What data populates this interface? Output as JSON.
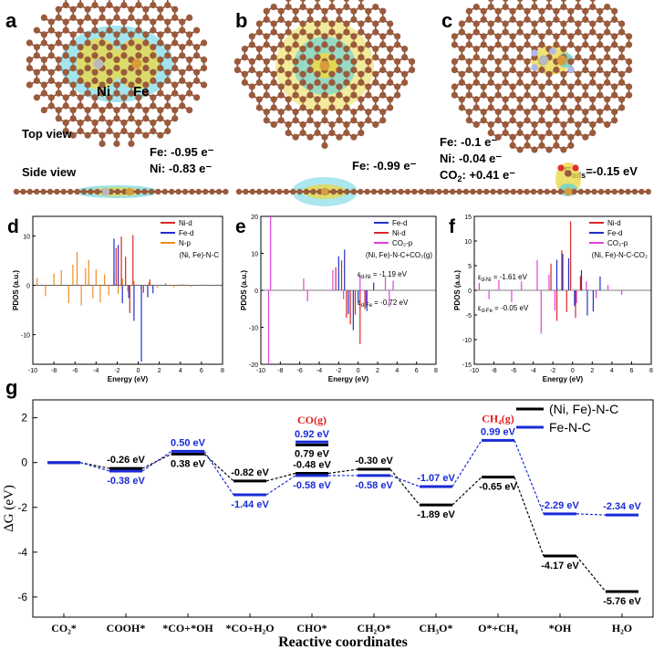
{
  "figure": {
    "panels_top": {
      "a": {
        "label": "a",
        "atom_ni": "Ni",
        "atom_fe": "Fe",
        "top_view": "Top view",
        "side_view": "Side view",
        "charge_fe": "Fe: -0.95 e⁻",
        "charge_ni": "Ni: -0.83 e⁻"
      },
      "b": {
        "label": "b",
        "charge_fe": "Fe: -0.99 e⁻"
      },
      "c": {
        "label": "c",
        "charge_fe": "Fe: -0.1 e⁻",
        "charge_ni": "Ni: -0.04 e⁻",
        "charge_co2_prefix": "CO",
        "charge_co2_sub": "2",
        "charge_co2_value": ": +0.41 e⁻",
        "eads_prefix": "E",
        "eads_sub": "ads",
        "eads_value": "=-0.15 eV"
      }
    },
    "colors": {
      "carbon": "#9a5a3c",
      "bond": "#8a4c30",
      "nitrogen": "#b0b8e8",
      "fe_atom": "#d79c3b",
      "ni_atom": "#b9b9b9",
      "iso_yellow": "#e8d84a",
      "iso_cyan": "#58cfe0",
      "ni_d": "#d62728",
      "fe_d": "#2030c8",
      "n_p": "#f08c1e",
      "co2_p": "#e040e0",
      "series_ni_fe": "#000000",
      "series_fe": "#1a2bd6",
      "gas_label": "#e02020"
    }
  },
  "chart_data": [
    {
      "id": "d",
      "type": "line",
      "label": "d",
      "xlabel": "Energy (eV)",
      "ylabel": "PDOS (a.u.)",
      "xlim": [
        -10,
        8
      ],
      "ylim": [
        -16,
        14
      ],
      "xticks": [
        -10,
        -8,
        -6,
        -4,
        -2,
        0,
        2,
        4,
        6,
        8
      ],
      "yticks": [
        -10,
        0,
        10
      ],
      "legend": [
        "Ni-d",
        "Fe-d",
        "N-p"
      ],
      "legend_title": "(Ni, Fe)-N-C",
      "series": [
        {
          "name": "N-p",
          "color": "#f08c1e",
          "x": [
            -9.6,
            -8.8,
            -8,
            -7.3,
            -6.6,
            -6.2,
            -5.8,
            -5.4,
            -5,
            -4.7,
            -4.3,
            -4,
            -3.6,
            -3.2,
            -2.8,
            -2.3,
            -1.9,
            -1.5,
            -1,
            -0.4,
            0.3,
            1,
            1.8,
            2.6,
            3.4,
            4.2,
            5,
            6,
            7
          ],
          "y": [
            1.5,
            -2.2,
            2.4,
            3.1,
            -3.6,
            4.2,
            6.8,
            -4.1,
            3.5,
            5.2,
            -2.6,
            3.2,
            -3.5,
            2.2,
            -2,
            2.6,
            -1.7,
            1.4,
            -1.2,
            0.9,
            -0.8,
            0.6,
            -0.5,
            0.5,
            -0.4,
            0.3,
            -0.3,
            0.2,
            -0.2
          ]
        },
        {
          "name": "Fe-d",
          "color": "#2030c8",
          "x": [
            -2.3,
            -1.9,
            -1.5,
            -0.9,
            -0.4,
            0.3,
            0.9,
            1.4
          ],
          "y": [
            9.5,
            8.2,
            -3.6,
            -2.6,
            -7.2,
            -15.5,
            -2.4,
            -1.6
          ]
        },
        {
          "name": "Ni-d",
          "color": "#d62728",
          "x": [
            -2.1,
            -1.6,
            -1.2,
            -0.8,
            -0.5,
            0.5,
            1.1
          ],
          "y": [
            7.6,
            9.9,
            5.8,
            -5.6,
            10.2,
            -1.5,
            1.2
          ]
        }
      ]
    },
    {
      "id": "e",
      "type": "line",
      "label": "e",
      "xlabel": "Energy (eV)",
      "ylabel": "PDOS (a.u.)",
      "xlim": [
        -10,
        8
      ],
      "ylim": [
        -20,
        20
      ],
      "xticks": [
        -10,
        -8,
        -6,
        -4,
        -2,
        0,
        2,
        4,
        6,
        8
      ],
      "yticks": [
        -20,
        -10,
        0,
        10,
        20
      ],
      "legend": [
        "Fe-d",
        "Ni-d",
        "CO₂-p"
      ],
      "legend_title": "(Ni, Fe)-N-C+CO₂(g)",
      "annot_ni_prefix": "ε",
      "annot_ni_sub": "d-Ni",
      "annot_ni_value": " = -1.19 eV",
      "annot_fe_prefix": "ε",
      "annot_fe_sub": "d-Fe",
      "annot_fe_value": " = -0.72 eV",
      "series": [
        {
          "name": "CO₂-p",
          "color": "#e040e0",
          "x": [
            -9.2,
            -9,
            -5.6,
            -5.2,
            -2.6,
            -1.5,
            0.2,
            0.8,
            2.8,
            3.2,
            3.6
          ],
          "y": [
            -20,
            20,
            3.2,
            -3,
            5.5,
            -2.4,
            4.2,
            -3.5,
            3.6,
            -4.5,
            2.6
          ]
        },
        {
          "name": "Ni-d",
          "color": "#d62728",
          "x": [
            -2.3,
            -1.7,
            -1.2,
            -0.8,
            -0.3,
            0.2,
            0.7
          ],
          "y": [
            6.2,
            8.1,
            -7.4,
            -9.2,
            -6.6,
            -14.5,
            -5.1
          ]
        },
        {
          "name": "Fe-d",
          "color": "#2030c8",
          "x": [
            -2,
            -1.4,
            -1,
            -0.5,
            0,
            0.9,
            1.6
          ],
          "y": [
            9.2,
            11,
            -6.4,
            -10.8,
            -3.2,
            -5.6,
            2.1
          ]
        }
      ]
    },
    {
      "id": "f",
      "type": "line",
      "label": "f",
      "xlabel": "Energy (eV)",
      "ylabel": "PDOS (a.u.)",
      "xlim": [
        -10,
        8
      ],
      "ylim": [
        -15,
        15
      ],
      "xticks": [
        -10,
        -8,
        -6,
        -4,
        -2,
        0,
        2,
        4,
        6,
        8
      ],
      "yticks": [
        -15,
        -10,
        -5,
        0,
        5,
        10,
        15
      ],
      "legend": [
        "Ni-d",
        "Fe-d",
        "CO₂-p"
      ],
      "legend_title": "(Ni, Fe)-N-C-CO₂",
      "annot_ni_prefix": "ε",
      "annot_ni_sub": "d-Ni",
      "annot_ni_value": " = -1.61 eV",
      "annot_fe_prefix": "ε",
      "annot_fe_sub": "d-Fe",
      "annot_fe_value": " = -0.05 eV",
      "series": [
        {
          "name": "CO₂-p",
          "color": "#e040e0",
          "x": [
            -9.5,
            -8.5,
            -7.5,
            -6.2,
            -5.2,
            -3.6,
            -3.2,
            -2.4,
            -1.8,
            -1,
            0.4,
            1.4,
            2.4,
            3.6,
            5
          ],
          "y": [
            1.5,
            -1.8,
            2.1,
            -2.4,
            1.8,
            6.1,
            -8.8,
            3.2,
            -4.1,
            2.4,
            -2.6,
            1.8,
            -1.6,
            1.1,
            -0.9
          ]
        },
        {
          "name": "Ni-d",
          "color": "#d62728",
          "x": [
            -2.2,
            -1.6,
            -1.1,
            -0.6,
            -0.2,
            0.3,
            0.8
          ],
          "y": [
            5.4,
            -6.2,
            8.1,
            -4.4,
            14,
            -5.6,
            2.9
          ]
        },
        {
          "name": "Fe-d",
          "color": "#2030c8",
          "x": [
            -1.6,
            -1,
            -0.4,
            0.2,
            0.9,
            1.5,
            2.1,
            2.8
          ],
          "y": [
            6.2,
            7.4,
            6.5,
            -3.2,
            4.1,
            -5.1,
            -4.3,
            2.8
          ]
        }
      ]
    },
    {
      "id": "g",
      "type": "line",
      "label": "g",
      "title": "",
      "xlabel": "Reactive coordinates",
      "ylabel": "ΔG (eV)",
      "ylim": [
        -6.9,
        2.8
      ],
      "yticks": [
        -6,
        -4,
        -2,
        0,
        2
      ],
      "categories": [
        "CO₂*",
        "COOH*",
        "*CO+*OH",
        "*CO+H₂O",
        "CHO*",
        "CH₂O*",
        "CH₃O*",
        "O*+CH₄",
        "*OH",
        "H₂O"
      ],
      "gas_labels": [
        {
          "index": 4,
          "text": "CO(g)"
        },
        {
          "index": 7,
          "text": "CH₄(g)"
        }
      ],
      "legend": [
        "(Ni, Fe)-N-C",
        "Fe-N-C"
      ],
      "series": [
        {
          "name": "(Ni, Fe)-N-C",
          "color": "#000000",
          "values": [
            0,
            -0.26,
            0.38,
            -0.82,
            -0.48,
            -0.3,
            -1.89,
            -0.65,
            -4.17,
            -5.76
          ],
          "labels": [
            "",
            "-0.26 eV",
            "0.38 eV",
            "-0.82 eV",
            "-0.48 eV",
            "-0.30 eV",
            "-1.89 eV",
            "-0.65 eV",
            "-4.17 eV",
            "-5.76 eV"
          ]
        },
        {
          "name": "(Ni, Fe)-N-C gas",
          "color": "#000000",
          "gas": true,
          "points": [
            {
              "index": 4,
              "value": 0.79,
              "label": "0.79 eV"
            }
          ]
        },
        {
          "name": "Fe-N-C",
          "color": "#1a2bd6",
          "values": [
            0,
            -0.38,
            0.5,
            -1.44,
            -0.58,
            -0.58,
            -1.07,
            0.99,
            -2.29,
            -2.34
          ],
          "labels": [
            "",
            "-0.38 eV",
            "0.50 eV",
            "-1.44 eV",
            "-0.58 eV",
            "-0.58 eV",
            "-1.07 eV",
            "0.99 eV",
            "-2.29 eV",
            "-2.34 eV"
          ]
        },
        {
          "name": "Fe-N-C gas",
          "color": "#1a2bd6",
          "gas": true,
          "points": [
            {
              "index": 4,
              "value": 0.92,
              "label": "0.92 eV"
            }
          ]
        }
      ]
    }
  ]
}
